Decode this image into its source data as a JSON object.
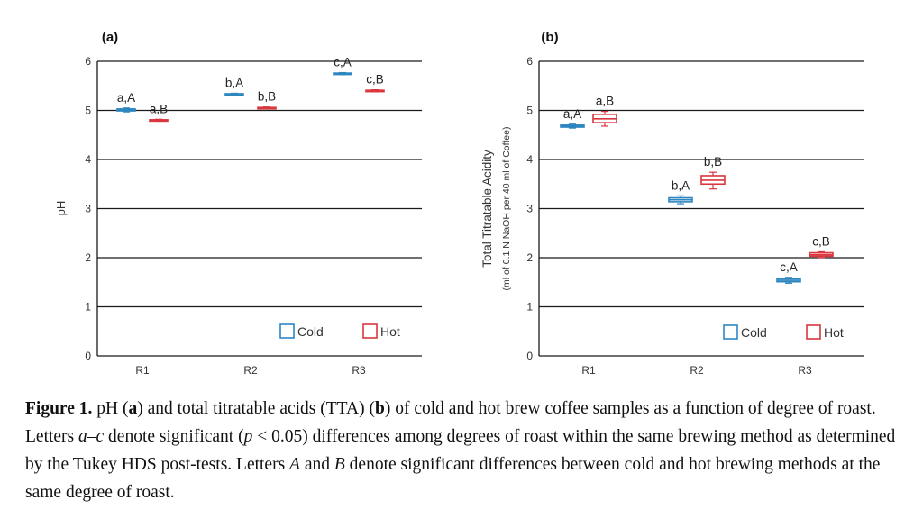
{
  "figure": {
    "caption": {
      "label": "Figure 1.",
      "s1": " pH (",
      "s2": "a",
      "s3": ") and total titratable acids (TTA) (",
      "s4": "b",
      "s5": ") of cold and hot brew coffee samples as a function of degree of roast. Letters ",
      "s6": "a–c",
      "s7": " denote significant (",
      "s8": "p",
      "s9": " < 0.05) differences among degrees of roast within the same brewing method as determined by the Tukey HDS post-tests. Letters ",
      "s10": "A",
      "s11": " and ",
      "s12": "B",
      "s13": " denote significant differences between cold and hot brewing methods at the same degree of roast."
    }
  },
  "chart_data": [
    {
      "type": "box",
      "panel_label": "(a)",
      "ylabel": "pH",
      "xlabel": "",
      "ylim": [
        0,
        6
      ],
      "yticks": [
        0,
        1,
        2,
        3,
        4,
        5,
        6
      ],
      "categories": [
        "R1",
        "R2",
        "R3"
      ],
      "grid": true,
      "legend_position": "bottom-right",
      "legend": [
        "Cold",
        "Hot"
      ],
      "series": [
        {
          "name": "Cold",
          "color": "#2e86c1",
          "boxes": [
            {
              "low": 4.97,
              "q1": 4.99,
              "median": 5.01,
              "q3": 5.03,
              "high": 5.05
            },
            {
              "low": 5.31,
              "q1": 5.32,
              "median": 5.33,
              "q3": 5.34,
              "high": 5.35
            },
            {
              "low": 5.73,
              "q1": 5.74,
              "median": 5.75,
              "q3": 5.76,
              "high": 5.77
            }
          ],
          "labels": [
            "a,A",
            "b,A",
            "c,A"
          ]
        },
        {
          "name": "Hot",
          "color": "#d9363e",
          "boxes": [
            {
              "low": 4.78,
              "q1": 4.79,
              "median": 4.8,
              "q3": 4.81,
              "high": 4.82
            },
            {
              "low": 5.03,
              "q1": 5.04,
              "median": 5.05,
              "q3": 5.06,
              "high": 5.07
            },
            {
              "low": 5.38,
              "q1": 5.39,
              "median": 5.4,
              "q3": 5.41,
              "high": 5.42
            }
          ],
          "labels": [
            "a,B",
            "b,B",
            "c,B"
          ]
        }
      ]
    },
    {
      "type": "box",
      "panel_label": "(b)",
      "ylabel": "Total Titratable Acidity",
      "ylabel2": "(ml of 0.1 N NaOH per 40 ml of Coffee)",
      "xlabel": "",
      "ylim": [
        0,
        6
      ],
      "yticks": [
        0,
        1,
        2,
        3,
        4,
        5,
        6
      ],
      "categories": [
        "R1",
        "R2",
        "R3"
      ],
      "grid": true,
      "legend_position": "bottom-right",
      "legend": [
        "Cold",
        "Hot"
      ],
      "series": [
        {
          "name": "Cold",
          "color": "#2e86c1",
          "boxes": [
            {
              "low": 4.64,
              "q1": 4.66,
              "median": 4.68,
              "q3": 4.7,
              "high": 4.72
            },
            {
              "low": 3.1,
              "q1": 3.14,
              "median": 3.18,
              "q3": 3.22,
              "high": 3.26
            },
            {
              "low": 1.48,
              "q1": 1.51,
              "median": 1.54,
              "q3": 1.57,
              "high": 1.6
            }
          ],
          "labels": [
            "a,A",
            "b,A",
            "c,A"
          ]
        },
        {
          "name": "Hot",
          "color": "#d9363e",
          "boxes": [
            {
              "low": 4.68,
              "q1": 4.75,
              "median": 4.83,
              "q3": 4.92,
              "high": 4.98
            },
            {
              "low": 3.4,
              "q1": 3.5,
              "median": 3.58,
              "q3": 3.67,
              "high": 3.74
            },
            {
              "low": 2.0,
              "q1": 2.03,
              "median": 2.06,
              "q3": 2.1,
              "high": 2.12
            }
          ],
          "labels": [
            "a,B",
            "b,B",
            "c,B"
          ]
        }
      ]
    }
  ]
}
